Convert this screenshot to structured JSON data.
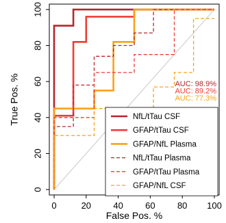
{
  "chart_data": {
    "type": "line",
    "title": "",
    "xlabel": "False Pos. %",
    "ylabel": "True Pos. %",
    "xlim": [
      -3,
      103
    ],
    "ylim": [
      -3,
      103
    ],
    "x_ticks": [
      "0",
      "20",
      "40",
      "60",
      "80",
      "100"
    ],
    "y_ticks": [
      "0",
      "20",
      "40",
      "60",
      "80",
      "100"
    ],
    "grid": false,
    "diagonal_reference": true,
    "legend_position": "bottom-right",
    "series": [
      {
        "name": "NfL/tTau CSF",
        "color": "#b3262e",
        "dash": "solid",
        "x": [
          0,
          0,
          12,
          12,
          100
        ],
        "y": [
          0,
          91,
          91,
          100,
          100
        ]
      },
      {
        "name": "GFAP/tTau CSF",
        "color": "#ee3b36",
        "dash": "solid",
        "x": [
          0,
          0,
          12,
          12,
          20,
          20,
          50,
          50,
          100
        ],
        "y": [
          0,
          41,
          41,
          82,
          82,
          96,
          96,
          100,
          100
        ]
      },
      {
        "name": "GFAP/NfL Plasma",
        "color": "#f7a21b",
        "dash": "solid",
        "x": [
          0,
          0,
          25,
          25,
          37,
          37,
          50,
          50,
          100
        ],
        "y": [
          0,
          45,
          45,
          55,
          55,
          82,
          82,
          100,
          100
        ]
      },
      {
        "name": "NfL/tTau Plasma",
        "color": "#b3262e",
        "dash": "dashed",
        "x": [
          0,
          0,
          12,
          12,
          25,
          25,
          37,
          37,
          50,
          50,
          62,
          62,
          100
        ],
        "y": [
          0,
          35,
          35,
          58,
          58,
          74,
          74,
          80,
          80,
          87,
          87,
          100,
          100
        ]
      },
      {
        "name": "GFAP/tTau Plasma",
        "color": "#ee3b36",
        "dash": "dashed",
        "x": [
          0,
          0,
          25,
          25,
          50,
          50,
          75,
          75,
          100
        ],
        "y": [
          0,
          40,
          40,
          65,
          65,
          75,
          75,
          100,
          100
        ]
      },
      {
        "name": "GFAP/NfL CSF",
        "color": "#f7a21b",
        "dash": "dashed",
        "x": [
          0,
          0,
          25,
          25,
          62,
          62,
          75,
          75,
          87,
          87,
          100
        ],
        "y": [
          0,
          30,
          30,
          45,
          45,
          57,
          57,
          65,
          65,
          95,
          95
        ]
      }
    ],
    "annotations": [
      {
        "text": "AUC: 98.9%",
        "color": "#b3262e"
      },
      {
        "text": "AUC: 89.2%",
        "color": "#ee3b36"
      },
      {
        "text": "AUC: 77.3%",
        "color": "#f7a21b"
      }
    ]
  }
}
